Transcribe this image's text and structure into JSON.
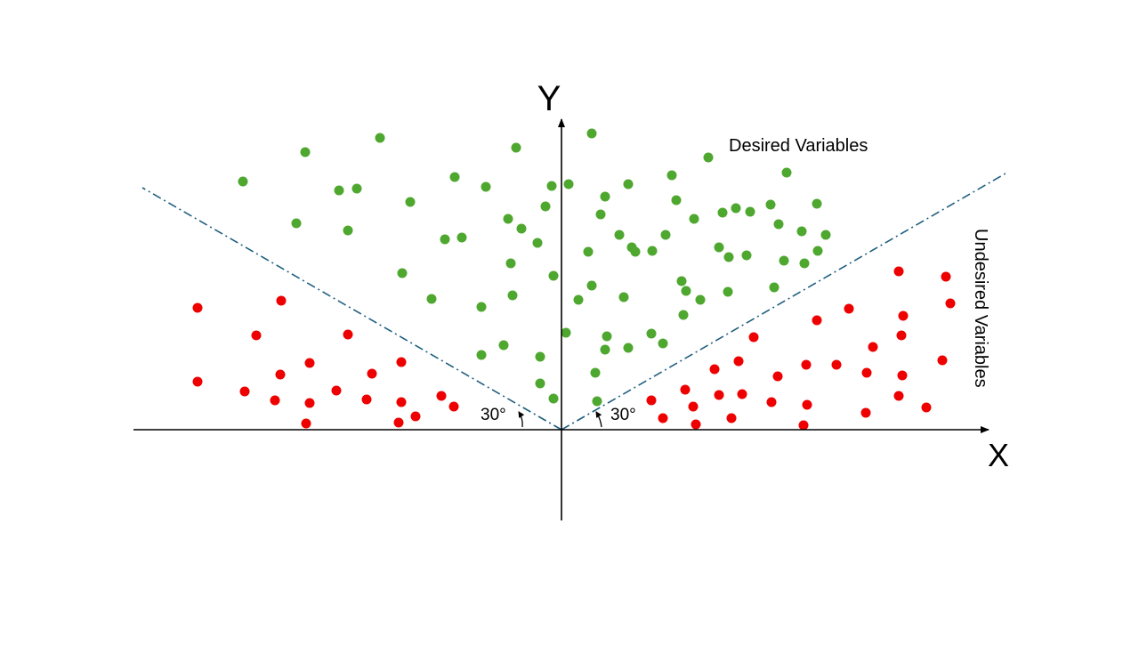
{
  "axes": {
    "y_label": "Y",
    "x_label": "X"
  },
  "regions": {
    "desired": "Desired Variables",
    "undesired": "Undesired Variables"
  },
  "angles": {
    "left": "30°",
    "right": "30°"
  }
}
